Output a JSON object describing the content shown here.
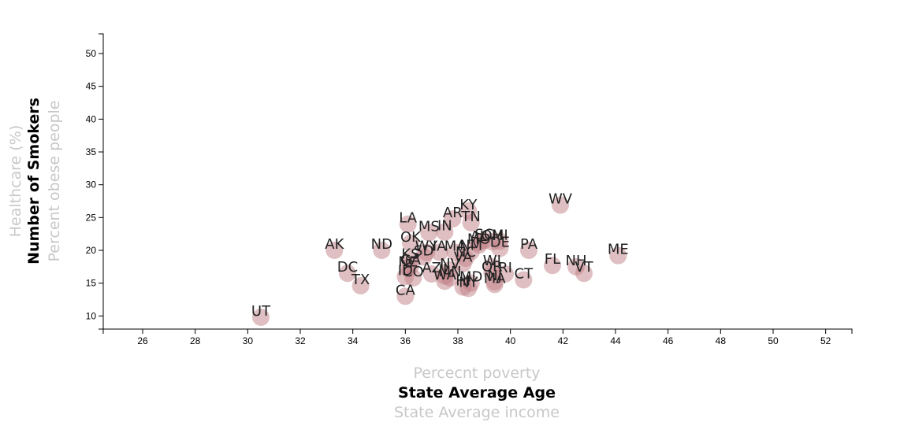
{
  "chart_data": {
    "type": "scatter",
    "xlim": [
      24.5,
      53
    ],
    "ylim": [
      8,
      53
    ],
    "x_ticks": [
      26,
      28,
      30,
      32,
      34,
      36,
      38,
      40,
      42,
      44,
      46,
      48,
      50,
      52
    ],
    "y_ticks": [
      10,
      15,
      20,
      25,
      30,
      35,
      40,
      45,
      50
    ],
    "x_axis_titles": [
      {
        "label": "Percecnt poverty",
        "active": false
      },
      {
        "label": "State Average Age",
        "active": true
      },
      {
        "label": "State Average income",
        "active": false
      }
    ],
    "y_axis_titles": [
      {
        "label": "Healthcare (%)",
        "active": false
      },
      {
        "label": "Number of Smokers",
        "active": true
      },
      {
        "label": "Percent obese people",
        "active": false
      }
    ],
    "marker_color": "#c07f86",
    "points": [
      {
        "abbr": "UT",
        "x": 30.5,
        "y": 9.8
      },
      {
        "abbr": "AK",
        "x": 33.3,
        "y": 20.0
      },
      {
        "abbr": "DC",
        "x": 33.8,
        "y": 16.5
      },
      {
        "abbr": "TX",
        "x": 34.3,
        "y": 14.6
      },
      {
        "abbr": "ND",
        "x": 35.1,
        "y": 20.0
      },
      {
        "abbr": "LA",
        "x": 36.1,
        "y": 24.0
      },
      {
        "abbr": "OK",
        "x": 36.2,
        "y": 21.1
      },
      {
        "abbr": "CA",
        "x": 36.0,
        "y": 13.0
      },
      {
        "abbr": "ID",
        "x": 36.0,
        "y": 16.0
      },
      {
        "abbr": "CO",
        "x": 36.3,
        "y": 15.8
      },
      {
        "abbr": "NE",
        "x": 36.1,
        "y": 17.3
      },
      {
        "abbr": "GA",
        "x": 36.2,
        "y": 17.6
      },
      {
        "abbr": "KS",
        "x": 36.2,
        "y": 18.5
      },
      {
        "abbr": "SD",
        "x": 36.7,
        "y": 19.0
      },
      {
        "abbr": "WY",
        "x": 36.8,
        "y": 19.7
      },
      {
        "abbr": "IA",
        "x": 37.3,
        "y": 19.7
      },
      {
        "abbr": "AZ",
        "x": 37.0,
        "y": 16.4
      },
      {
        "abbr": "MS",
        "x": 36.9,
        "y": 22.7
      },
      {
        "abbr": "IN",
        "x": 37.5,
        "y": 22.8
      },
      {
        "abbr": "IL",
        "x": 37.5,
        "y": 16.1
      },
      {
        "abbr": "NV",
        "x": 37.7,
        "y": 17.0
      },
      {
        "abbr": "MN",
        "x": 37.7,
        "y": 15.8
      },
      {
        "abbr": "WA",
        "x": 37.5,
        "y": 15.3
      },
      {
        "abbr": "MA",
        "x": 37.9,
        "y": 19.7
      },
      {
        "abbr": "AR",
        "x": 37.8,
        "y": 24.8
      },
      {
        "abbr": "KY",
        "x": 38.4,
        "y": 26.0
      },
      {
        "abbr": "TN",
        "x": 38.5,
        "y": 24.2
      },
      {
        "abbr": "NC",
        "x": 38.3,
        "y": 18.8
      },
      {
        "abbr": "VA",
        "x": 38.2,
        "y": 18.0
      },
      {
        "abbr": "MO",
        "x": 38.8,
        "y": 20.8
      },
      {
        "abbr": "SC",
        "x": 39.0,
        "y": 21.5
      },
      {
        "abbr": "AL",
        "x": 38.8,
        "y": 21.2
      },
      {
        "abbr": "OH",
        "x": 39.3,
        "y": 21.3
      },
      {
        "abbr": "MI",
        "x": 39.6,
        "y": 21.4
      },
      {
        "abbr": "DE",
        "x": 39.6,
        "y": 20.3
      },
      {
        "abbr": "NM",
        "x": 38.5,
        "y": 19.8
      },
      {
        "abbr": "MD",
        "x": 38.5,
        "y": 15.0
      },
      {
        "abbr": "HI",
        "x": 38.2,
        "y": 14.4
      },
      {
        "abbr": "NY",
        "x": 38.4,
        "y": 14.2
      },
      {
        "abbr": "WI",
        "x": 39.3,
        "y": 17.5
      },
      {
        "abbr": "OR",
        "x": 39.3,
        "y": 16.6
      },
      {
        "abbr": "RI",
        "x": 39.8,
        "y": 16.4
      },
      {
        "abbr": "NJ",
        "x": 39.4,
        "y": 15.2
      },
      {
        "abbr": "MA",
        "x": 39.4,
        "y": 14.8
      },
      {
        "abbr": "CT",
        "x": 40.5,
        "y": 15.5
      },
      {
        "abbr": "PA",
        "x": 40.7,
        "y": 20.0
      },
      {
        "abbr": "FL",
        "x": 41.6,
        "y": 17.7
      },
      {
        "abbr": "WV",
        "x": 41.9,
        "y": 26.9
      },
      {
        "abbr": "NH",
        "x": 42.5,
        "y": 17.5
      },
      {
        "abbr": "VT",
        "x": 42.8,
        "y": 16.5
      },
      {
        "abbr": "ME",
        "x": 44.1,
        "y": 19.2
      }
    ]
  }
}
